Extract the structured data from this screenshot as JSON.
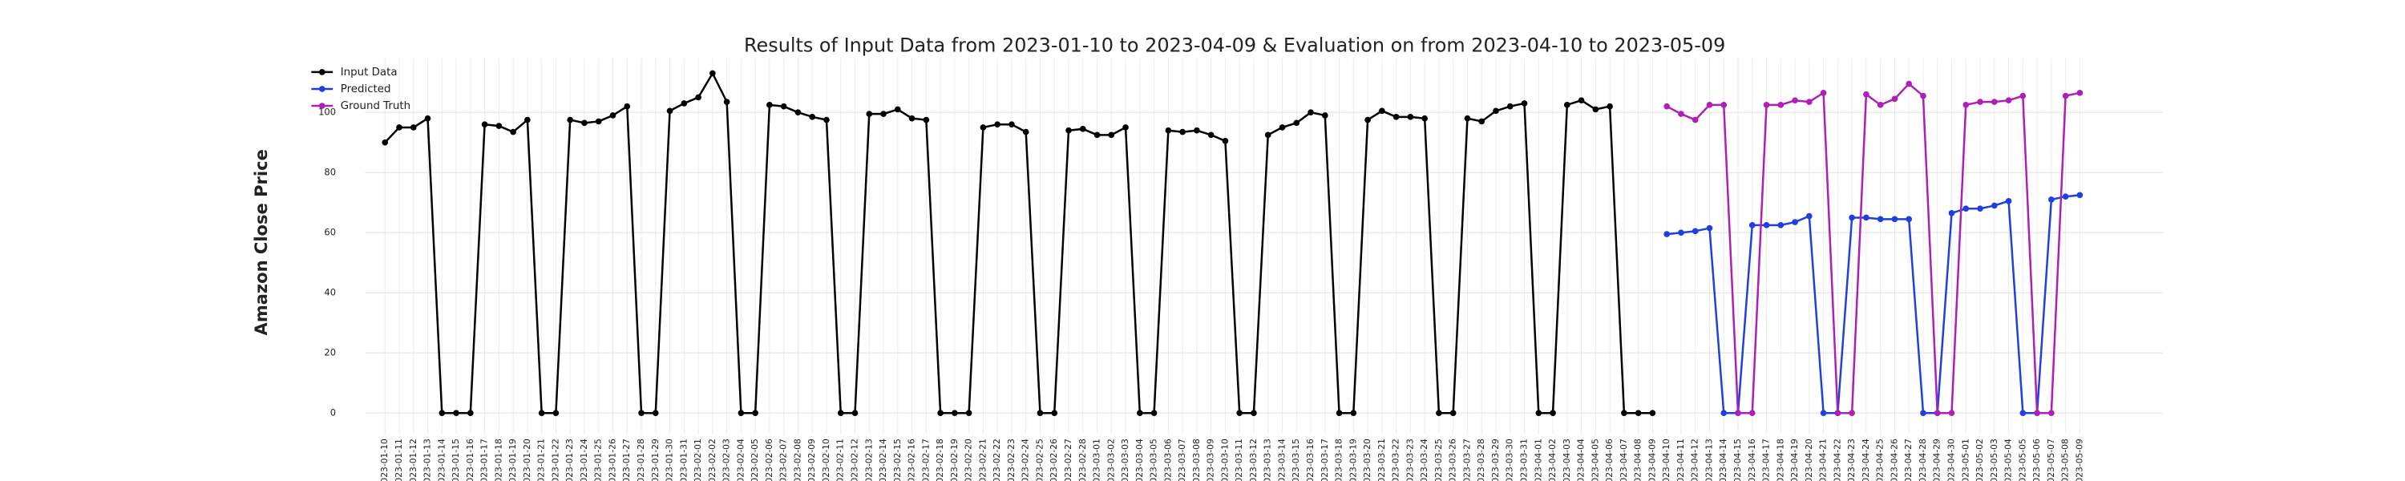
{
  "chart_data": {
    "type": "line",
    "title": "Results of Input Data from 2023-01-10 to 2023-04-09 & Evaluation on from 2023-04-10 to 2023-05-09",
    "ylabel": "Amazon Close Price",
    "categories": [
      "2023-01-10",
      "2023-01-11",
      "2023-01-12",
      "2023-01-13",
      "2023-01-14",
      "2023-01-15",
      "2023-01-16",
      "2023-01-17",
      "2023-01-18",
      "2023-01-19",
      "2023-01-20",
      "2023-01-21",
      "2023-01-22",
      "2023-01-23",
      "2023-01-24",
      "2023-01-25",
      "2023-01-26",
      "2023-01-27",
      "2023-01-28",
      "2023-01-29",
      "2023-01-30",
      "2023-01-31",
      "2023-02-01",
      "2023-02-02",
      "2023-02-03",
      "2023-02-04",
      "2023-02-05",
      "2023-02-06",
      "2023-02-07",
      "2023-02-08",
      "2023-02-09",
      "2023-02-10",
      "2023-02-11",
      "2023-02-12",
      "2023-02-13",
      "2023-02-14",
      "2023-02-15",
      "2023-02-16",
      "2023-02-17",
      "2023-02-18",
      "2023-02-19",
      "2023-02-20",
      "2023-02-21",
      "2023-02-22",
      "2023-02-23",
      "2023-02-24",
      "2023-02-25",
      "2023-02-26",
      "2023-02-27",
      "2023-02-28",
      "2023-03-01",
      "2023-03-02",
      "2023-03-03",
      "2023-03-04",
      "2023-03-05",
      "2023-03-06",
      "2023-03-07",
      "2023-03-08",
      "2023-03-09",
      "2023-03-10",
      "2023-03-11",
      "2023-03-12",
      "2023-03-13",
      "2023-03-14",
      "2023-03-15",
      "2023-03-16",
      "2023-03-17",
      "2023-03-18",
      "2023-03-19",
      "2023-03-20",
      "2023-03-21",
      "2023-03-22",
      "2023-03-23",
      "2023-03-24",
      "2023-03-25",
      "2023-03-26",
      "2023-03-27",
      "2023-03-28",
      "2023-03-29",
      "2023-03-30",
      "2023-03-31",
      "2023-04-01",
      "2023-04-02",
      "2023-04-03",
      "2023-04-04",
      "2023-04-05",
      "2023-04-06",
      "2023-04-07",
      "2023-04-08",
      "2023-04-09",
      "2023-04-10",
      "2023-04-11",
      "2023-04-12",
      "2023-04-13",
      "2023-04-14",
      "2023-04-15",
      "2023-04-16",
      "2023-04-17",
      "2023-04-18",
      "2023-04-19",
      "2023-04-20",
      "2023-04-21",
      "2023-04-22",
      "2023-04-23",
      "2023-04-24",
      "2023-04-25",
      "2023-04-26",
      "2023-04-27",
      "2023-04-28",
      "2023-04-29",
      "2023-04-30",
      "2023-05-01",
      "2023-05-02",
      "2023-05-03",
      "2023-05-04",
      "2023-05-05",
      "2023-05-06",
      "2023-05-07",
      "2023-05-08",
      "2023-05-09"
    ],
    "series": [
      {
        "name": "Input Data",
        "color": "#000000",
        "values": [
          90,
          95,
          95,
          98,
          0,
          0,
          0,
          96,
          95.5,
          93.5,
          97.5,
          0,
          0,
          97.5,
          96.5,
          97,
          99,
          102,
          0,
          0,
          100.5,
          103,
          105,
          113,
          103.5,
          0,
          0,
          102.5,
          102,
          100,
          98.5,
          97.5,
          0,
          0,
          99.5,
          99.5,
          101,
          98,
          97.5,
          0,
          0,
          0,
          95,
          96,
          96,
          93.5,
          0,
          0,
          94,
          94.5,
          92.5,
          92.5,
          95,
          0,
          0,
          94,
          93.5,
          94,
          92.5,
          90.5,
          0,
          0,
          92.5,
          95,
          96.5,
          100,
          99,
          0,
          0,
          97.5,
          100.5,
          98.5,
          98.5,
          98,
          0,
          0,
          98,
          97,
          100.5,
          102,
          103,
          0,
          0,
          102.5,
          104,
          101,
          102,
          0,
          0,
          0,
          null,
          null,
          null,
          null,
          null,
          null,
          null,
          null,
          null,
          null,
          null,
          null,
          null,
          null,
          null,
          null,
          null,
          null,
          null,
          null,
          null,
          null,
          null,
          null,
          null,
          null,
          null,
          null,
          null,
          null
        ]
      },
      {
        "name": "Predicted",
        "color": "#1f3fe0",
        "values": [
          null,
          null,
          null,
          null,
          null,
          null,
          null,
          null,
          null,
          null,
          null,
          null,
          null,
          null,
          null,
          null,
          null,
          null,
          null,
          null,
          null,
          null,
          null,
          null,
          null,
          null,
          null,
          null,
          null,
          null,
          null,
          null,
          null,
          null,
          null,
          null,
          null,
          null,
          null,
          null,
          null,
          null,
          null,
          null,
          null,
          null,
          null,
          null,
          null,
          null,
          null,
          null,
          null,
          null,
          null,
          null,
          null,
          null,
          null,
          null,
          null,
          null,
          null,
          null,
          null,
          null,
          null,
          null,
          null,
          null,
          null,
          null,
          null,
          null,
          null,
          null,
          null,
          null,
          null,
          null,
          null,
          null,
          null,
          null,
          null,
          null,
          null,
          null,
          null,
          null,
          59.5,
          60,
          60.5,
          61.5,
          0,
          0,
          62.5,
          62.5,
          62.5,
          63.5,
          65.5,
          0,
          0,
          65,
          65,
          64.5,
          64.5,
          64.5,
          0,
          0,
          66.5,
          68,
          68,
          69,
          70.5,
          0,
          0,
          71,
          72,
          72.5
        ]
      },
      {
        "name": "Ground Truth",
        "color": "#b01eb8",
        "values": [
          null,
          null,
          null,
          null,
          null,
          null,
          null,
          null,
          null,
          null,
          null,
          null,
          null,
          null,
          null,
          null,
          null,
          null,
          null,
          null,
          null,
          null,
          null,
          null,
          null,
          null,
          null,
          null,
          null,
          null,
          null,
          null,
          null,
          null,
          null,
          null,
          null,
          null,
          null,
          null,
          null,
          null,
          null,
          null,
          null,
          null,
          null,
          null,
          null,
          null,
          null,
          null,
          null,
          null,
          null,
          null,
          null,
          null,
          null,
          null,
          null,
          null,
          null,
          null,
          null,
          null,
          null,
          null,
          null,
          null,
          null,
          null,
          null,
          null,
          null,
          null,
          null,
          null,
          null,
          null,
          null,
          null,
          null,
          null,
          null,
          null,
          null,
          null,
          null,
          null,
          102,
          99.5,
          97.5,
          102.5,
          102.5,
          0,
          0,
          102.5,
          102.5,
          104,
          103.5,
          106.5,
          0,
          0,
          106,
          102.5,
          104.5,
          109.5,
          105.5,
          0,
          0,
          102.5,
          103.5,
          103.5,
          104,
          105.5,
          0,
          0,
          105.5,
          106.5
        ]
      }
    ],
    "ylim": [
      -7,
      118
    ],
    "yticks": [
      0,
      20,
      40,
      60,
      80,
      100
    ],
    "grid": true,
    "legend": "upper left"
  }
}
